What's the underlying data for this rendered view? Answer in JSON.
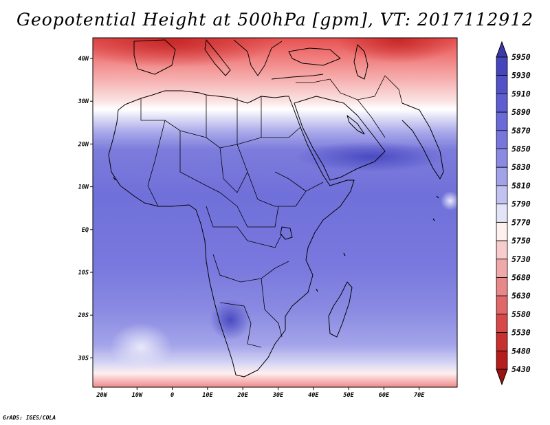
{
  "map": {
    "title": "Geopotential Height at 500hPa [gpm], VT: 2017112912",
    "credit": "GrADS: IGES/COLA",
    "lat_labels": [
      "40N",
      "30N",
      "20N",
      "10N",
      "EQ",
      "10S",
      "20S",
      "30S"
    ],
    "lon_labels": [
      "20W",
      "10W",
      "0",
      "10E",
      "20E",
      "30E",
      "40E",
      "50E",
      "60E",
      "70E"
    ],
    "colorbar": {
      "levels": [
        "5950",
        "5930",
        "5910",
        "5890",
        "5870",
        "5850",
        "5830",
        "5810",
        "5790",
        "5770",
        "5750",
        "5730",
        "5680",
        "5630",
        "5580",
        "5530",
        "5480",
        "5430"
      ],
      "colors": [
        "#3a3aaa",
        "#4545bc",
        "#5252c8",
        "#5e5ed2",
        "#6a6ad8",
        "#7676dd",
        "#8a8ae2",
        "#a2a2e8",
        "#c2c2f0",
        "#e4e4f8",
        "#fff0f0",
        "#f8cccc",
        "#f0a8a8",
        "#e88888",
        "#e06868",
        "#d84848",
        "#c83030",
        "#b41e1e",
        "#9a1212"
      ]
    }
  }
}
